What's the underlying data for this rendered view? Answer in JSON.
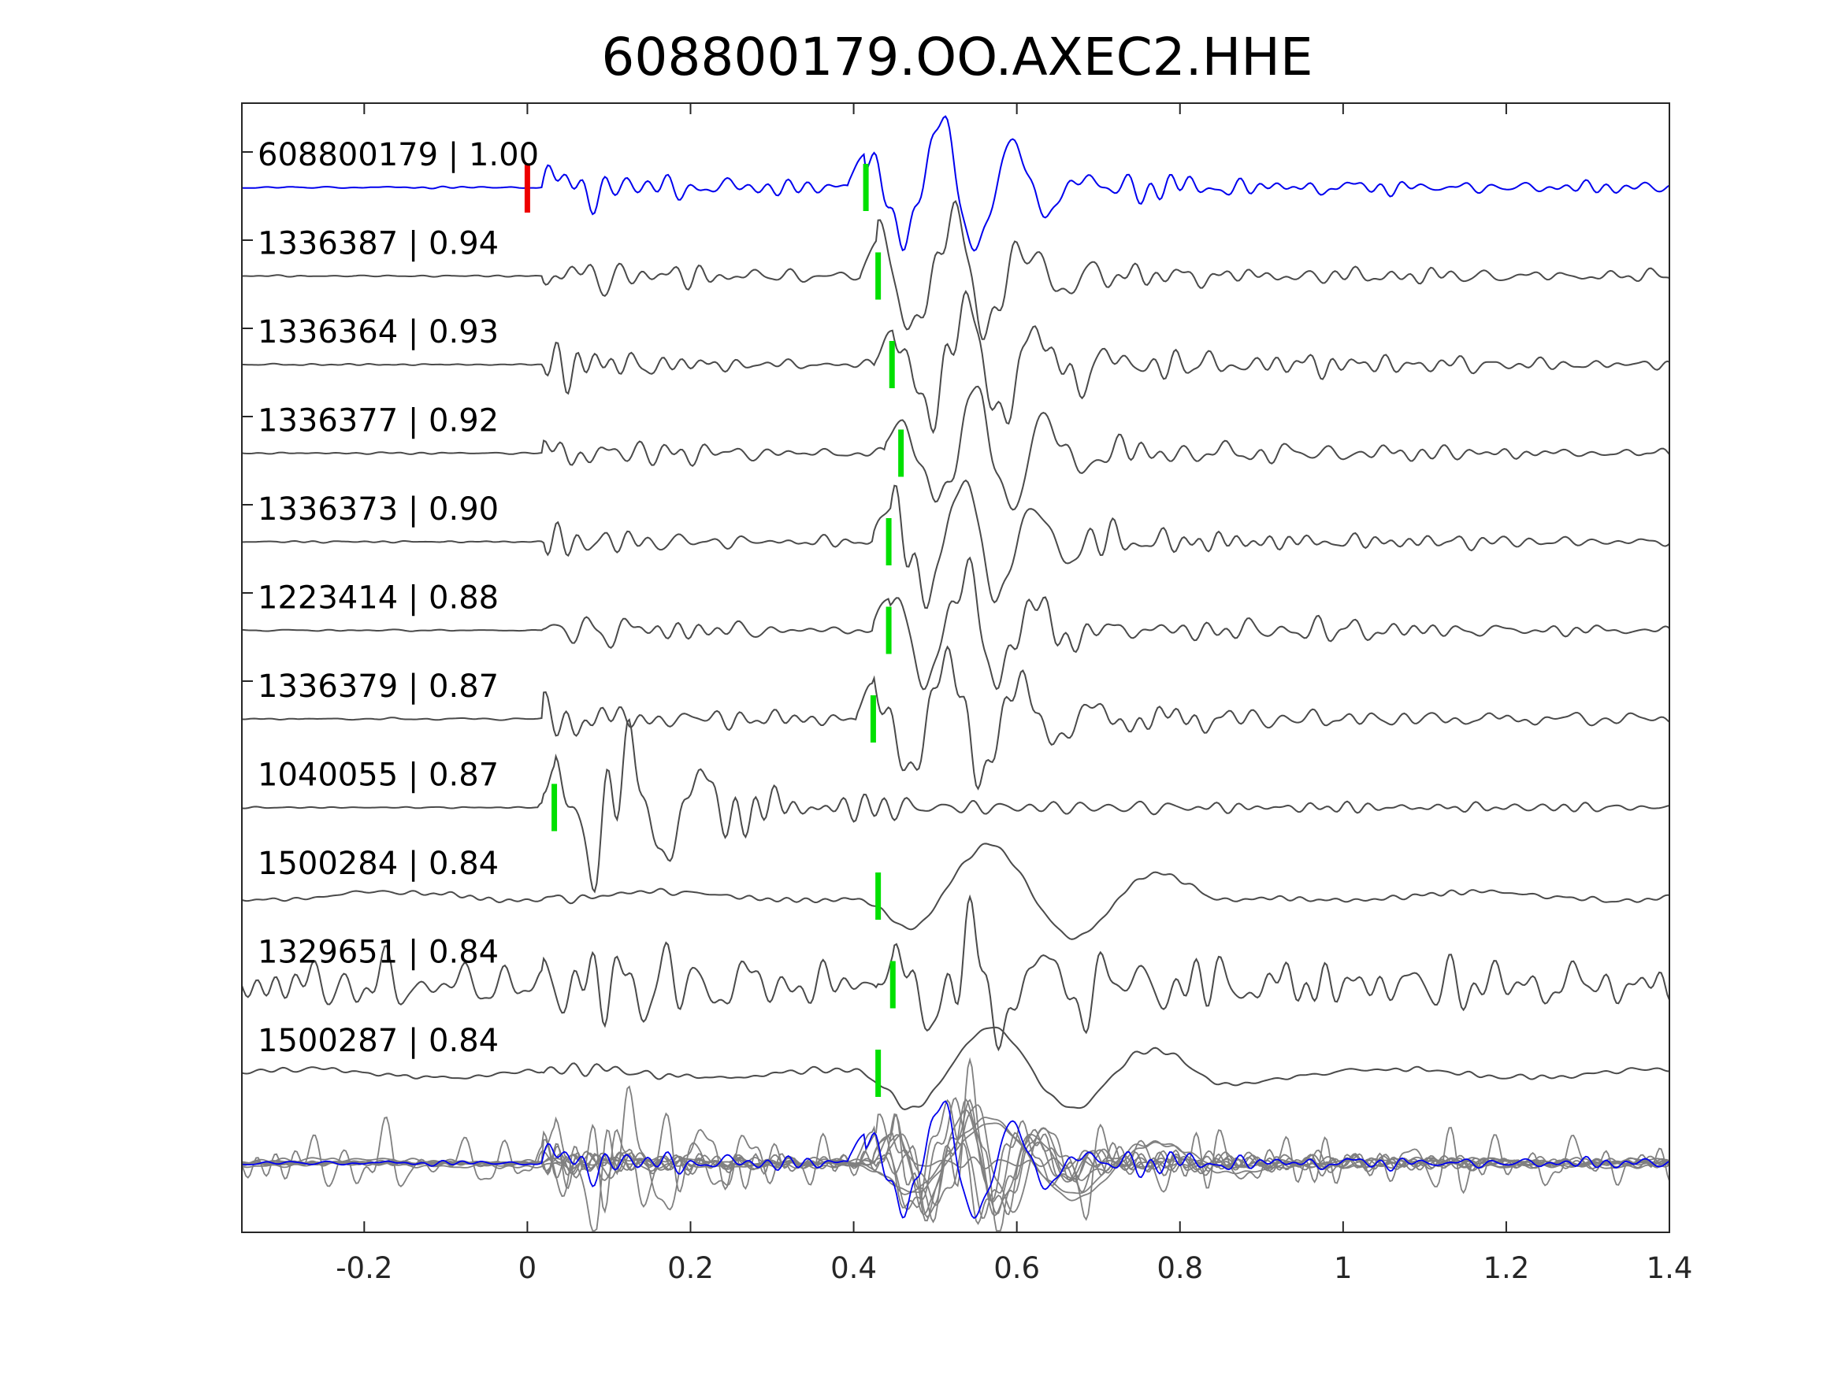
{
  "chart_data": {
    "type": "line",
    "title": "608800179.OO.AXEC2.HHE",
    "xlabel": "",
    "ylabel": "",
    "xlim": [
      -0.35,
      1.4
    ],
    "xticks": [
      -0.2,
      0,
      0.2,
      0.4,
      0.6,
      0.8,
      1,
      1.2,
      1.4
    ],
    "xtick_labels": [
      "-0.2",
      "0",
      "0.2",
      "0.4",
      "0.6",
      "0.8",
      "1",
      "1.2",
      "1.4"
    ],
    "grid": false,
    "colors": {
      "template": "#0000ee",
      "matches": "#4a4a4a",
      "stack": "#808080",
      "pick": "#00e000",
      "origin": "#ee0000",
      "axes": "#262626"
    },
    "origin_marker_x": 0.0,
    "series": [
      {
        "label": "608800179 | 1.00",
        "pick": 0.415,
        "style": "template"
      },
      {
        "label": "1336387 | 0.94",
        "pick": 0.43,
        "style": "match"
      },
      {
        "label": "1336364 | 0.93",
        "pick": 0.447,
        "style": "match"
      },
      {
        "label": "1336377 | 0.92",
        "pick": 0.458,
        "style": "match"
      },
      {
        "label": "1336373 | 0.90",
        "pick": 0.443,
        "style": "match"
      },
      {
        "label": "1223414 | 0.88",
        "pick": 0.443,
        "style": "match"
      },
      {
        "label": "1336379 | 0.87",
        "pick": 0.424,
        "style": "match"
      },
      {
        "label": "1040055 | 0.87",
        "pick": 0.033,
        "style": "match"
      },
      {
        "label": "1500284 | 0.84",
        "pick": 0.43,
        "style": "match-long"
      },
      {
        "label": "1329651 | 0.84",
        "pick": 0.448,
        "style": "match-noisy"
      },
      {
        "label": "1500287 | 0.84",
        "pick": 0.43,
        "style": "match-long"
      }
    ]
  }
}
